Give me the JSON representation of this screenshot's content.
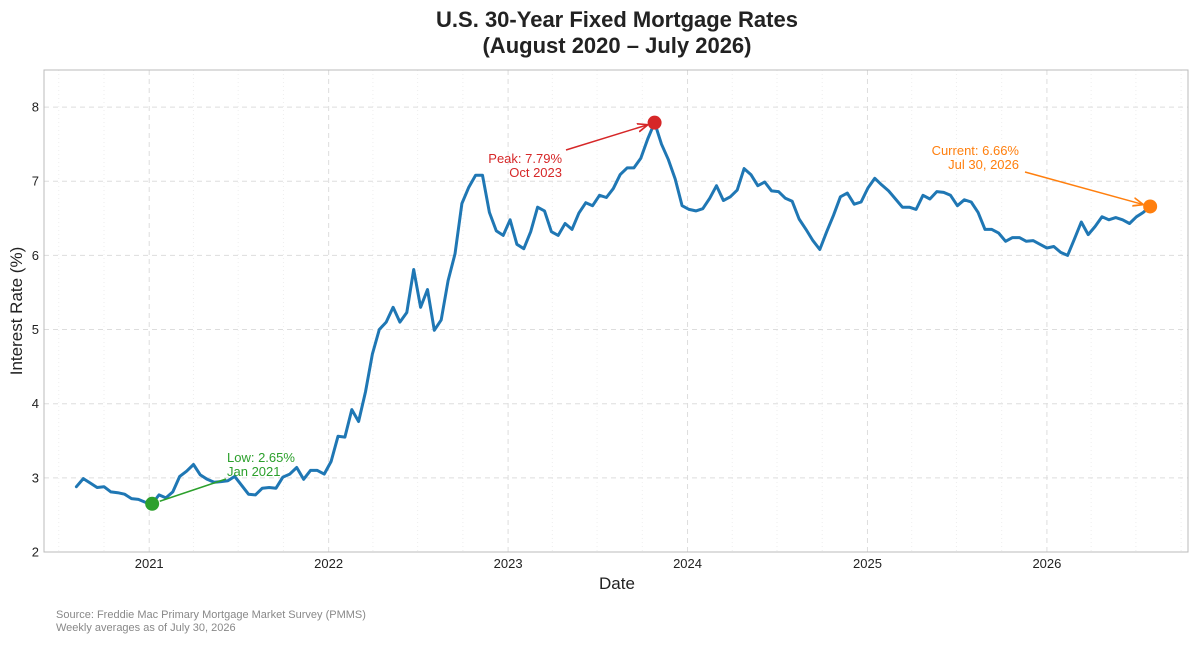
{
  "colors": {
    "line": "#1f77b4",
    "peak": "#d62728",
    "low": "#2ca02c",
    "current": "#ff7f0e",
    "grid": "#dddddd",
    "frame": "#bbbbbb"
  },
  "chart_data": {
    "type": "line",
    "title": [
      "U.S. 30-Year Fixed Mortgage Rates",
      "(August 2020 – July 2026)"
    ],
    "xlabel": "Date",
    "ylabel": "Interest Rate (%)",
    "xlim": [
      "2020-06-01",
      "2026-10-15"
    ],
    "ylim": [
      2,
      8.5
    ],
    "x_ticks": [
      "2021-01-01",
      "2022-01-01",
      "2023-01-01",
      "2024-01-01",
      "2025-01-01",
      "2026-01-01"
    ],
    "x_tick_labels": [
      "2021",
      "2022",
      "2023",
      "2024",
      "2025",
      "2026"
    ],
    "y_ticks": [
      2,
      3,
      4,
      5,
      6,
      7,
      8
    ],
    "grid": true,
    "series": [
      {
        "points": [
          [
            "2020-08-06",
            2.88
          ],
          [
            "2020-08-20",
            2.99
          ],
          [
            "2020-09-03",
            2.93
          ],
          [
            "2020-09-17",
            2.87
          ],
          [
            "2020-10-01",
            2.88
          ],
          [
            "2020-10-15",
            2.81
          ],
          [
            "2020-10-29",
            2.8
          ],
          [
            "2020-11-12",
            2.78
          ],
          [
            "2020-11-26",
            2.72
          ],
          [
            "2020-12-10",
            2.71
          ],
          [
            "2020-12-24",
            2.67
          ],
          [
            "2021-01-07",
            2.65
          ],
          [
            "2021-01-21",
            2.77
          ],
          [
            "2021-02-04",
            2.73
          ],
          [
            "2021-02-18",
            2.81
          ],
          [
            "2021-03-04",
            3.02
          ],
          [
            "2021-03-18",
            3.09
          ],
          [
            "2021-04-01",
            3.18
          ],
          [
            "2021-04-15",
            3.04
          ],
          [
            "2021-04-29",
            2.98
          ],
          [
            "2021-05-13",
            2.94
          ],
          [
            "2021-05-27",
            2.95
          ],
          [
            "2021-06-10",
            2.96
          ],
          [
            "2021-06-24",
            3.02
          ],
          [
            "2021-07-08",
            2.9
          ],
          [
            "2021-07-22",
            2.78
          ],
          [
            "2021-08-05",
            2.77
          ],
          [
            "2021-08-19",
            2.86
          ],
          [
            "2021-09-02",
            2.87
          ],
          [
            "2021-09-16",
            2.86
          ],
          [
            "2021-09-30",
            3.01
          ],
          [
            "2021-10-14",
            3.05
          ],
          [
            "2021-10-28",
            3.14
          ],
          [
            "2021-11-11",
            2.98
          ],
          [
            "2021-11-25",
            3.1
          ],
          [
            "2021-12-09",
            3.1
          ],
          [
            "2021-12-23",
            3.05
          ],
          [
            "2022-01-06",
            3.22
          ],
          [
            "2022-01-20",
            3.56
          ],
          [
            "2022-02-03",
            3.55
          ],
          [
            "2022-02-17",
            3.92
          ],
          [
            "2022-03-03",
            3.76
          ],
          [
            "2022-03-17",
            4.16
          ],
          [
            "2022-03-31",
            4.67
          ],
          [
            "2022-04-14",
            5.0
          ],
          [
            "2022-04-28",
            5.1
          ],
          [
            "2022-05-12",
            5.3
          ],
          [
            "2022-05-26",
            5.1
          ],
          [
            "2022-06-09",
            5.23
          ],
          [
            "2022-06-23",
            5.81
          ],
          [
            "2022-07-07",
            5.3
          ],
          [
            "2022-07-21",
            5.54
          ],
          [
            "2022-08-04",
            4.99
          ],
          [
            "2022-08-18",
            5.13
          ],
          [
            "2022-09-01",
            5.66
          ],
          [
            "2022-09-15",
            6.02
          ],
          [
            "2022-09-29",
            6.7
          ],
          [
            "2022-10-13",
            6.92
          ],
          [
            "2022-10-27",
            7.08
          ],
          [
            "2022-11-10",
            7.08
          ],
          [
            "2022-11-24",
            6.58
          ],
          [
            "2022-12-08",
            6.33
          ],
          [
            "2022-12-22",
            6.27
          ],
          [
            "2023-01-05",
            6.48
          ],
          [
            "2023-01-19",
            6.15
          ],
          [
            "2023-02-02",
            6.09
          ],
          [
            "2023-02-16",
            6.32
          ],
          [
            "2023-03-02",
            6.65
          ],
          [
            "2023-03-16",
            6.6
          ],
          [
            "2023-03-30",
            6.32
          ],
          [
            "2023-04-13",
            6.27
          ],
          [
            "2023-04-27",
            6.43
          ],
          [
            "2023-05-11",
            6.35
          ],
          [
            "2023-05-25",
            6.57
          ],
          [
            "2023-06-08",
            6.71
          ],
          [
            "2023-06-22",
            6.67
          ],
          [
            "2023-07-06",
            6.81
          ],
          [
            "2023-07-20",
            6.78
          ],
          [
            "2023-08-03",
            6.9
          ],
          [
            "2023-08-17",
            7.09
          ],
          [
            "2023-08-31",
            7.18
          ],
          [
            "2023-09-14",
            7.18
          ],
          [
            "2023-09-28",
            7.31
          ],
          [
            "2023-10-12",
            7.57
          ],
          [
            "2023-10-26",
            7.79
          ],
          [
            "2023-11-09",
            7.5
          ],
          [
            "2023-11-23",
            7.29
          ],
          [
            "2023-12-07",
            7.03
          ],
          [
            "2023-12-21",
            6.67
          ],
          [
            "2024-01-04",
            6.62
          ],
          [
            "2024-01-18",
            6.6
          ],
          [
            "2024-02-01",
            6.63
          ],
          [
            "2024-02-15",
            6.77
          ],
          [
            "2024-02-29",
            6.94
          ],
          [
            "2024-03-14",
            6.74
          ],
          [
            "2024-03-28",
            6.79
          ],
          [
            "2024-04-11",
            6.88
          ],
          [
            "2024-04-25",
            7.17
          ],
          [
            "2024-05-09",
            7.09
          ],
          [
            "2024-05-23",
            6.94
          ],
          [
            "2024-06-06",
            6.99
          ],
          [
            "2024-06-20",
            6.87
          ],
          [
            "2024-07-04",
            6.86
          ],
          [
            "2024-07-18",
            6.77
          ],
          [
            "2024-08-01",
            6.73
          ],
          [
            "2024-08-15",
            6.49
          ],
          [
            "2024-08-29",
            6.35
          ],
          [
            "2024-09-12",
            6.2
          ],
          [
            "2024-09-26",
            6.08
          ],
          [
            "2024-10-10",
            6.32
          ],
          [
            "2024-10-24",
            6.54
          ],
          [
            "2024-11-07",
            6.79
          ],
          [
            "2024-11-21",
            6.84
          ],
          [
            "2024-12-05",
            6.69
          ],
          [
            "2024-12-19",
            6.72
          ],
          [
            "2025-01-02",
            6.91
          ],
          [
            "2025-01-16",
            7.04
          ],
          [
            "2025-01-30",
            6.95
          ],
          [
            "2025-02-13",
            6.87
          ],
          [
            "2025-02-27",
            6.76
          ],
          [
            "2025-03-13",
            6.65
          ],
          [
            "2025-03-27",
            6.65
          ],
          [
            "2025-04-10",
            6.62
          ],
          [
            "2025-04-24",
            6.81
          ],
          [
            "2025-05-08",
            6.76
          ],
          [
            "2025-05-22",
            6.86
          ],
          [
            "2025-06-05",
            6.85
          ],
          [
            "2025-06-19",
            6.81
          ],
          [
            "2025-07-03",
            6.67
          ],
          [
            "2025-07-17",
            6.75
          ],
          [
            "2025-07-31",
            6.72
          ],
          [
            "2025-08-14",
            6.58
          ],
          [
            "2025-08-28",
            6.35
          ],
          [
            "2025-09-11",
            6.35
          ],
          [
            "2025-09-25",
            6.3
          ],
          [
            "2025-10-09",
            6.19
          ],
          [
            "2025-10-23",
            6.24
          ],
          [
            "2025-11-06",
            6.24
          ],
          [
            "2025-11-20",
            6.19
          ],
          [
            "2025-12-04",
            6.2
          ],
          [
            "2025-12-18",
            6.15
          ],
          [
            "2026-01-01",
            6.1
          ],
          [
            "2026-01-15",
            6.12
          ],
          [
            "2026-01-29",
            6.04
          ],
          [
            "2026-02-12",
            6.0
          ],
          [
            "2026-02-26",
            6.22
          ],
          [
            "2026-03-12",
            6.45
          ],
          [
            "2026-03-26",
            6.28
          ],
          [
            "2026-04-09",
            6.39
          ],
          [
            "2026-04-23",
            6.52
          ],
          [
            "2026-05-07",
            6.48
          ],
          [
            "2026-05-21",
            6.51
          ],
          [
            "2026-06-04",
            6.48
          ],
          [
            "2026-06-18",
            6.43
          ],
          [
            "2026-07-02",
            6.52
          ],
          [
            "2026-07-16",
            6.58
          ],
          [
            "2026-07-30",
            6.66
          ]
        ]
      }
    ],
    "markers": [
      {
        "id": "low",
        "x": "2021-01-07",
        "y": 2.65,
        "label": [
          "Low: 2.65%",
          "Jan 2021"
        ]
      },
      {
        "id": "peak",
        "x": "2023-10-26",
        "y": 7.79,
        "label": [
          "Peak: 7.79%",
          "Oct 2023"
        ]
      },
      {
        "id": "current",
        "x": "2026-07-30",
        "y": 6.66,
        "label": [
          "Current: 6.66%",
          "Jul 30, 2026"
        ]
      }
    ]
  },
  "source": [
    "Source: Freddie Mac Primary Mortgage Market Survey (PMMS)",
    "Weekly averages as of July 30, 2026"
  ]
}
